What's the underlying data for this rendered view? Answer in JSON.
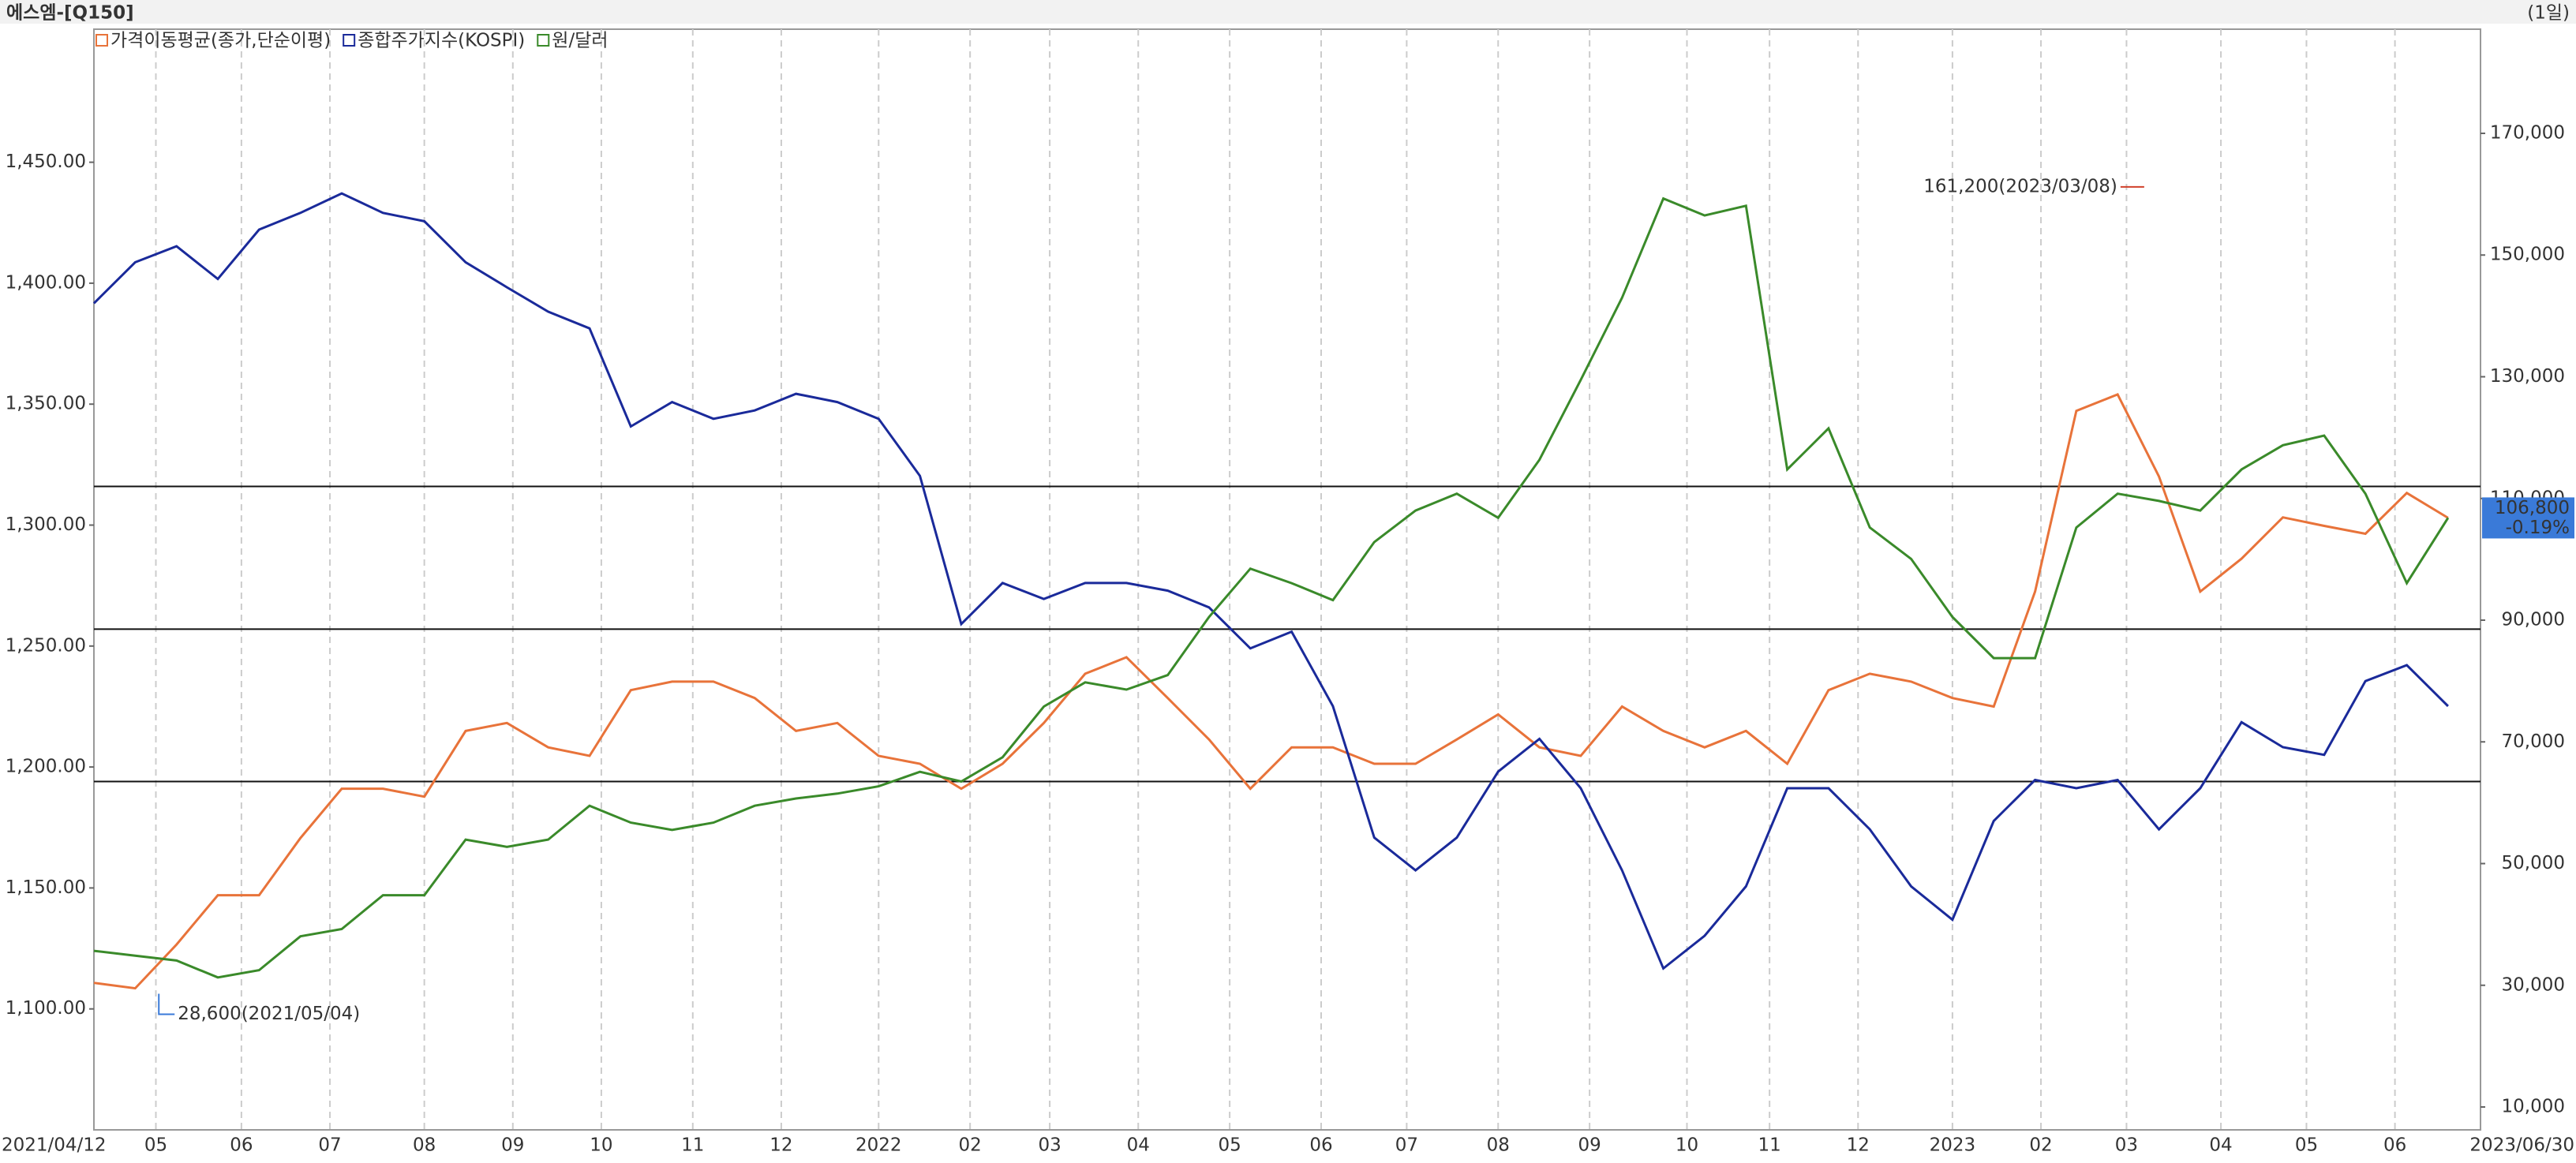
{
  "chart_data": {
    "type": "line",
    "title": "에스엠-[Q150]",
    "period": "(1일)",
    "xlim": [
      "2021/04/12",
      "2023/06/30"
    ],
    "xticks": [
      "2021/04/12",
      {
        "value": "2021/05/03",
        "label": "05"
      },
      {
        "value": "2021/06/01",
        "label": "06"
      },
      {
        "value": "2021/07/01",
        "label": "07"
      },
      {
        "value": "2021/08/02",
        "label": "08"
      },
      {
        "value": "2021/09/01",
        "label": "09"
      },
      {
        "value": "2021/10/01",
        "label": "10"
      },
      {
        "value": "2021/11/01",
        "label": "11"
      },
      {
        "value": "2021/12/01",
        "label": "12"
      },
      {
        "value": "2022/01/03",
        "label": "2022"
      },
      {
        "value": "2022/02/03",
        "label": "02"
      },
      {
        "value": "2022/03/02",
        "label": "03"
      },
      {
        "value": "2022/04/01",
        "label": "04"
      },
      {
        "value": "2022/05/02",
        "label": "05"
      },
      {
        "value": "2022/06/02",
        "label": "06"
      },
      {
        "value": "2022/07/01",
        "label": "07"
      },
      {
        "value": "2022/08/01",
        "label": "08"
      },
      {
        "value": "2022/09/01",
        "label": "09"
      },
      {
        "value": "2022/10/04",
        "label": "10"
      },
      {
        "value": "2022/11/01",
        "label": "11"
      },
      {
        "value": "2022/12/01",
        "label": "12"
      },
      {
        "value": "2023/01/02",
        "label": "2023"
      },
      {
        "value": "2023/02/01",
        "label": "02"
      },
      {
        "value": "2023/03/02",
        "label": "03"
      },
      {
        "value": "2023/04/03",
        "label": "04"
      },
      {
        "value": "2023/05/02",
        "label": "05"
      },
      {
        "value": "2023/06/01",
        "label": "06"
      },
      "2023/06/30"
    ],
    "ylim": [
      1050,
      1505
    ],
    "yticks": [
      {
        "value": 1100,
        "label": "1,100.00"
      },
      {
        "value": 1150,
        "label": "1,150.00"
      },
      {
        "value": 1200,
        "label": "1,200.00"
      },
      {
        "value": 1250,
        "label": "1,250.00"
      },
      {
        "value": 1300,
        "label": "1,300.00"
      },
      {
        "value": 1350,
        "label": "1,350.00"
      },
      {
        "value": 1400,
        "label": "1,400.00"
      },
      {
        "value": 1450,
        "label": "1,450.00"
      }
    ],
    "y2lim": [
      6240,
      187115
    ],
    "y2ticks": [
      {
        "value": 10000,
        "label": "10,000"
      },
      {
        "value": 30000,
        "label": "30,000"
      },
      {
        "value": 50000,
        "label": "50,000"
      },
      {
        "value": 70000,
        "label": "70,000"
      },
      {
        "value": 90000,
        "label": "90,000"
      },
      {
        "value": 110000,
        "label": "110,000"
      },
      {
        "value": 130000,
        "label": "130,000"
      },
      {
        "value": 150000,
        "label": "150,000"
      },
      {
        "value": 170000,
        "label": "170,000"
      }
    ],
    "y3lim": [
      1947,
      3529
    ],
    "hlines": [
      1316,
      1257,
      1194
    ],
    "x": [
      "2021/04/12",
      "2021/04/26",
      "2021/05/10",
      "2021/05/24",
      "2021/06/07",
      "2021/06/21",
      "2021/07/05",
      "2021/07/19",
      "2021/08/02",
      "2021/08/16",
      "2021/08/30",
      "2021/09/13",
      "2021/09/27",
      "2021/10/11",
      "2021/10/25",
      "2021/11/08",
      "2021/11/22",
      "2021/12/06",
      "2021/12/20",
      "2022/01/03",
      "2022/01/17",
      "2022/01/31",
      "2022/02/14",
      "2022/02/28",
      "2022/03/14",
      "2022/03/28",
      "2022/04/11",
      "2022/04/25",
      "2022/05/09",
      "2022/05/23",
      "2022/06/06",
      "2022/06/20",
      "2022/07/04",
      "2022/07/18",
      "2022/08/01",
      "2022/08/15",
      "2022/08/29",
      "2022/09/12",
      "2022/09/26",
      "2022/10/10",
      "2022/10/24",
      "2022/11/07",
      "2022/11/21",
      "2022/12/05",
      "2022/12/19",
      "2023/01/02",
      "2023/01/16",
      "2023/01/30",
      "2023/02/13",
      "2023/02/27",
      "2023/03/13",
      "2023/03/27",
      "2023/04/10",
      "2023/04/24",
      "2023/05/08",
      "2023/05/22",
      "2023/06/05",
      "2023/06/19"
    ],
    "series": [
      {
        "name": "가격이동평균(종가,단순이평)",
        "color": "#e8733a",
        "axis": "y2",
        "values": [
          30400,
          29500,
          36700,
          44800,
          44800,
          54200,
          62300,
          62300,
          61000,
          71800,
          73100,
          69100,
          67700,
          78500,
          79900,
          79900,
          77200,
          71800,
          73100,
          67700,
          66400,
          62300,
          66400,
          73100,
          81200,
          83900,
          77200,
          70400,
          62300,
          69100,
          69100,
          66400,
          66400,
          70400,
          74500,
          69100,
          67700,
          75800,
          71800,
          69100,
          71800,
          66400,
          78500,
          81200,
          79900,
          77200,
          75800,
          94700,
          124400,
          127100,
          113600,
          94700,
          100100,
          106900,
          105500,
          104200,
          110900,
          106800
        ]
      },
      {
        "name": "종합주가지수(KOSPI)",
        "color": "#1a2a9a",
        "axis": "y3",
        "values": [
          3135,
          3194,
          3217,
          3170,
          3241,
          3265,
          3293,
          3265,
          3253,
          3194,
          3158,
          3123,
          3099,
          2958,
          2993,
          2969,
          2981,
          3005,
          2993,
          2969,
          2887,
          2674,
          2733,
          2710,
          2733,
          2733,
          2722,
          2698,
          2639,
          2663,
          2556,
          2367,
          2320,
          2367,
          2462,
          2509,
          2438,
          2320,
          2179,
          2226,
          2297,
          2438,
          2438,
          2379,
          2297,
          2249,
          2391,
          2450,
          2438,
          2450,
          2379,
          2438,
          2533,
          2497,
          2486,
          2592,
          2615,
          2556
        ]
      },
      {
        "name": "원/달러",
        "color": "#3a8a2a",
        "axis": "y",
        "values": [
          1124,
          1122,
          1120,
          1113,
          1116,
          1130,
          1133,
          1147,
          1147,
          1170,
          1167,
          1170,
          1184,
          1177,
          1174,
          1177,
          1184,
          1187,
          1189,
          1192,
          1198,
          1194,
          1204,
          1225,
          1235,
          1232,
          1238,
          1262,
          1282,
          1276,
          1269,
          1293,
          1306,
          1313,
          1303,
          1327,
          1360,
          1394,
          1435,
          1428,
          1432,
          1323,
          1340,
          1299,
          1286,
          1262,
          1245,
          1245,
          1299,
          1313,
          1310,
          1306,
          1323,
          1333,
          1337,
          1313,
          1276,
          1303
        ]
      }
    ],
    "annotations": [
      {
        "label": "161,200(2023/03/08)",
        "value": 161200,
        "x": "2023/03/08",
        "color": "#d0402a"
      },
      {
        "label": "28,600(2021/05/04)",
        "value": 28600,
        "x": "2021/05/04",
        "color": "#3a7ad8"
      }
    ],
    "current": {
      "value": 106800,
      "label": "106,800",
      "change_label": "-0.19%",
      "color": "#3a7ad8"
    }
  }
}
